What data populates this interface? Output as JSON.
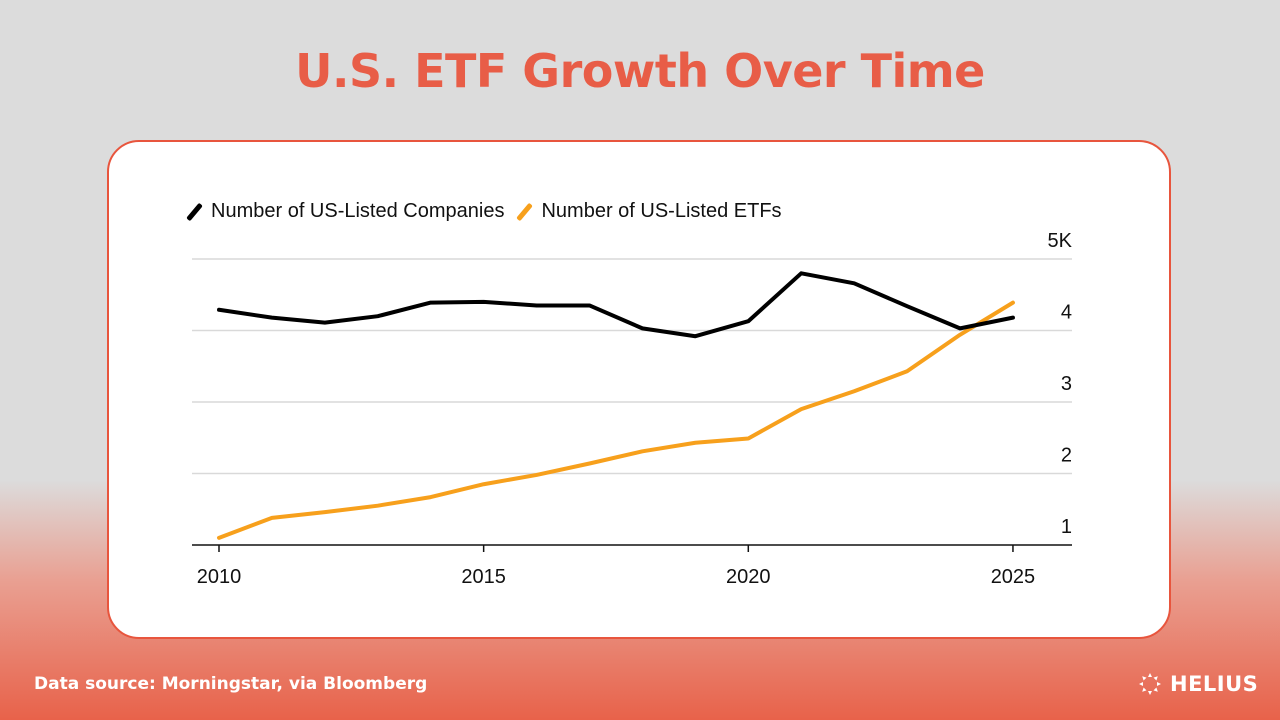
{
  "title": "U.S. ETF Growth Over Time",
  "source": "Data source: Morningstar, via Bloomberg",
  "brand": "HELIUS",
  "colors": {
    "accent": "#e8553d",
    "companies": "#000000",
    "etfs": "#f7a01c"
  },
  "chart_data": {
    "type": "line",
    "title": "",
    "xlabel": "",
    "ylabel": "",
    "x": [
      2010,
      2011,
      2012,
      2013,
      2014,
      2015,
      2016,
      2017,
      2018,
      2019,
      2020,
      2021,
      2022,
      2023,
      2024,
      2025
    ],
    "xlim": [
      2010,
      2026
    ],
    "ylim": [
      1,
      5
    ],
    "x_ticks": [
      "2010",
      "2015",
      "2020",
      "2025"
    ],
    "y_ticks": [
      "1",
      "2",
      "3",
      "4",
      "5K"
    ],
    "y_tick_values": [
      1,
      2,
      3,
      4,
      5
    ],
    "grid": "horizontal",
    "y_axis_side": "right",
    "legend": "top-left",
    "series": [
      {
        "name": "Number of US-Listed Companies",
        "color": "#000000",
        "values": [
          4.29,
          4.18,
          4.11,
          4.2,
          4.39,
          4.4,
          4.35,
          4.35,
          4.03,
          3.92,
          4.13,
          4.8,
          4.66,
          4.34,
          4.03,
          4.18
        ]
      },
      {
        "name": "Number of US-Listed ETFs",
        "color": "#f7a01c",
        "values": [
          1.1,
          1.38,
          1.46,
          1.55,
          1.67,
          1.85,
          1.98,
          2.14,
          2.31,
          2.43,
          2.49,
          2.9,
          3.15,
          3.43,
          3.94,
          4.39
        ]
      }
    ]
  }
}
